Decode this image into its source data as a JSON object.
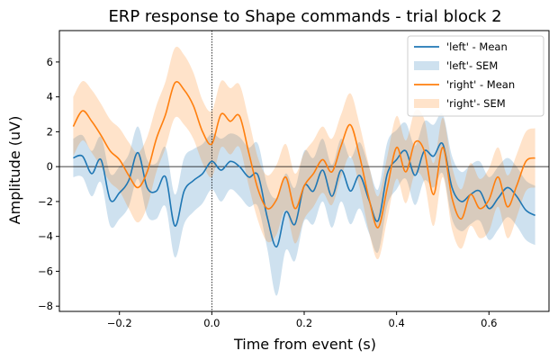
{
  "chart_data": {
    "type": "line",
    "title": "ERP response to Shape commands - trial block 2",
    "xlabel": "Time from event (s)",
    "ylabel": "Amplitude (uV)",
    "xlim": [
      -0.33,
      0.73
    ],
    "ylim": [
      -8.3,
      7.8
    ],
    "xticks": [
      -0.2,
      0.0,
      0.2,
      0.4,
      0.6
    ],
    "xtick_labels": [
      "−0.2",
      "0.0",
      "0.2",
      "0.4",
      "0.6"
    ],
    "yticks": [
      -8,
      -6,
      -4,
      -2,
      0,
      2,
      4,
      6
    ],
    "ytick_labels": [
      "−8",
      "−6",
      "−4",
      "−2",
      "0",
      "2",
      "4",
      "6"
    ],
    "reference_lines": {
      "horizontal_at_y": 0,
      "vertical_at_x": 0
    },
    "grid": false,
    "legend_position": "top-right",
    "legend": [
      "'left' - Mean",
      "'left'- SEM",
      "'right' - Mean",
      "'right'- SEM"
    ],
    "x": [
      -0.3,
      -0.28,
      -0.26,
      -0.24,
      -0.22,
      -0.2,
      -0.18,
      -0.16,
      -0.14,
      -0.12,
      -0.1,
      -0.08,
      -0.06,
      -0.04,
      -0.02,
      0.0,
      0.02,
      0.04,
      0.06,
      0.08,
      0.1,
      0.12,
      0.14,
      0.16,
      0.18,
      0.2,
      0.22,
      0.24,
      0.26,
      0.28,
      0.3,
      0.32,
      0.34,
      0.36,
      0.38,
      0.4,
      0.42,
      0.44,
      0.46,
      0.48,
      0.5,
      0.52,
      0.54,
      0.56,
      0.58,
      0.6,
      0.62,
      0.64,
      0.66,
      0.68,
      0.7
    ],
    "series": [
      {
        "name": "'left' - Mean",
        "sem_name": "'left'- SEM",
        "color": "#1f77b4",
        "sem_color": "#1f77b4",
        "values": [
          0.5,
          0.6,
          -0.4,
          0.4,
          -1.9,
          -1.5,
          -0.8,
          0.8,
          -1.2,
          -1.4,
          -0.6,
          -3.4,
          -1.4,
          -0.8,
          -0.4,
          0.3,
          -0.2,
          0.3,
          0.0,
          -0.6,
          -0.5,
          -2.9,
          -4.6,
          -2.6,
          -3.3,
          -1.1,
          -1.4,
          -0.2,
          -1.7,
          -0.2,
          -1.4,
          -0.5,
          -1.9,
          -3.1,
          -0.4,
          0.4,
          0.9,
          -0.5,
          0.9,
          0.6,
          1.3,
          -1.2,
          -2.0,
          -1.6,
          -1.4,
          -2.4,
          -1.8,
          -1.2,
          -1.7,
          -2.5,
          -2.8
        ],
        "sem_lower": [
          -0.6,
          -0.6,
          -1.7,
          -0.9,
          -3.4,
          -3.0,
          -2.3,
          -0.7,
          -2.8,
          -3.0,
          -2.3,
          -5.2,
          -3.3,
          -2.6,
          -2.1,
          -1.3,
          -2.0,
          -1.3,
          -1.7,
          -2.3,
          -2.3,
          -4.7,
          -7.4,
          -4.8,
          -5.4,
          -3.1,
          -3.3,
          -2.0,
          -3.5,
          -2.0,
          -3.3,
          -2.4,
          -3.8,
          -4.9,
          -2.2,
          -1.3,
          -0.7,
          -2.2,
          -0.8,
          -1.2,
          -0.4,
          -3.0,
          -3.7,
          -3.3,
          -3.1,
          -4.2,
          -3.6,
          -2.9,
          -3.4,
          -4.2,
          -4.5
        ],
        "sem_upper": [
          1.6,
          1.8,
          0.9,
          1.7,
          -0.4,
          0.0,
          0.7,
          2.3,
          0.4,
          0.2,
          1.1,
          -1.6,
          0.5,
          1.0,
          1.3,
          1.9,
          1.6,
          1.9,
          1.7,
          1.1,
          1.3,
          -1.1,
          -1.8,
          -0.4,
          -1.2,
          0.9,
          0.5,
          1.6,
          0.1,
          1.6,
          0.5,
          1.4,
          0.0,
          -1.3,
          1.4,
          2.1,
          2.5,
          1.2,
          2.6,
          2.4,
          3.0,
          0.6,
          -0.3,
          0.1,
          0.3,
          -0.6,
          0.0,
          0.5,
          0.0,
          -0.8,
          -1.1
        ]
      },
      {
        "name": "'right' - Mean",
        "sem_name": "'right'- SEM",
        "color": "#ff7f0e",
        "sem_color": "#ff7f0e",
        "values": [
          2.3,
          3.2,
          2.6,
          1.8,
          0.9,
          0.4,
          -0.5,
          -1.2,
          -0.3,
          1.6,
          3.0,
          4.8,
          4.4,
          3.5,
          2.0,
          1.3,
          3.0,
          2.6,
          2.9,
          0.8,
          -1.3,
          -2.4,
          -1.9,
          -0.6,
          -2.4,
          -1.1,
          -0.4,
          0.4,
          -0.3,
          1.2,
          2.4,
          0.6,
          -1.8,
          -3.5,
          -1.2,
          1.1,
          -0.3,
          1.4,
          0.9,
          -1.6,
          1.1,
          -1.8,
          -3.0,
          -1.6,
          -2.4,
          -1.9,
          -0.6,
          -2.3,
          -1.1,
          0.3,
          0.5
        ],
        "sem_lower": [
          0.6,
          1.5,
          0.8,
          0.0,
          -0.9,
          -1.4,
          -2.4,
          -3.2,
          -2.3,
          -0.3,
          1.1,
          2.8,
          2.4,
          1.6,
          0.2,
          -0.6,
          1.1,
          0.7,
          1.1,
          -1.1,
          -3.1,
          -4.3,
          -3.9,
          -2.5,
          -4.4,
          -3.0,
          -2.3,
          -1.5,
          -2.2,
          -0.6,
          0.6,
          -1.2,
          -3.7,
          -5.3,
          -3.0,
          -0.7,
          -2.1,
          -0.4,
          -0.9,
          -3.4,
          -0.6,
          -3.6,
          -4.7,
          -3.4,
          -4.1,
          -3.7,
          -2.3,
          -4.1,
          -2.9,
          -1.4,
          -1.2
        ],
        "sem_upper": [
          4.0,
          4.9,
          4.4,
          3.6,
          2.7,
          2.2,
          1.4,
          0.8,
          1.7,
          3.5,
          4.9,
          6.8,
          6.4,
          5.4,
          3.8,
          3.2,
          4.9,
          4.5,
          4.7,
          2.7,
          0.5,
          -0.5,
          0.1,
          1.3,
          -0.4,
          0.8,
          1.5,
          2.3,
          1.6,
          3.0,
          4.2,
          2.4,
          0.1,
          -1.7,
          0.6,
          2.9,
          1.5,
          3.2,
          2.7,
          0.2,
          2.8,
          0.0,
          -1.3,
          0.2,
          -0.7,
          -0.1,
          1.1,
          -0.5,
          0.7,
          2.0,
          2.2
        ]
      }
    ]
  }
}
